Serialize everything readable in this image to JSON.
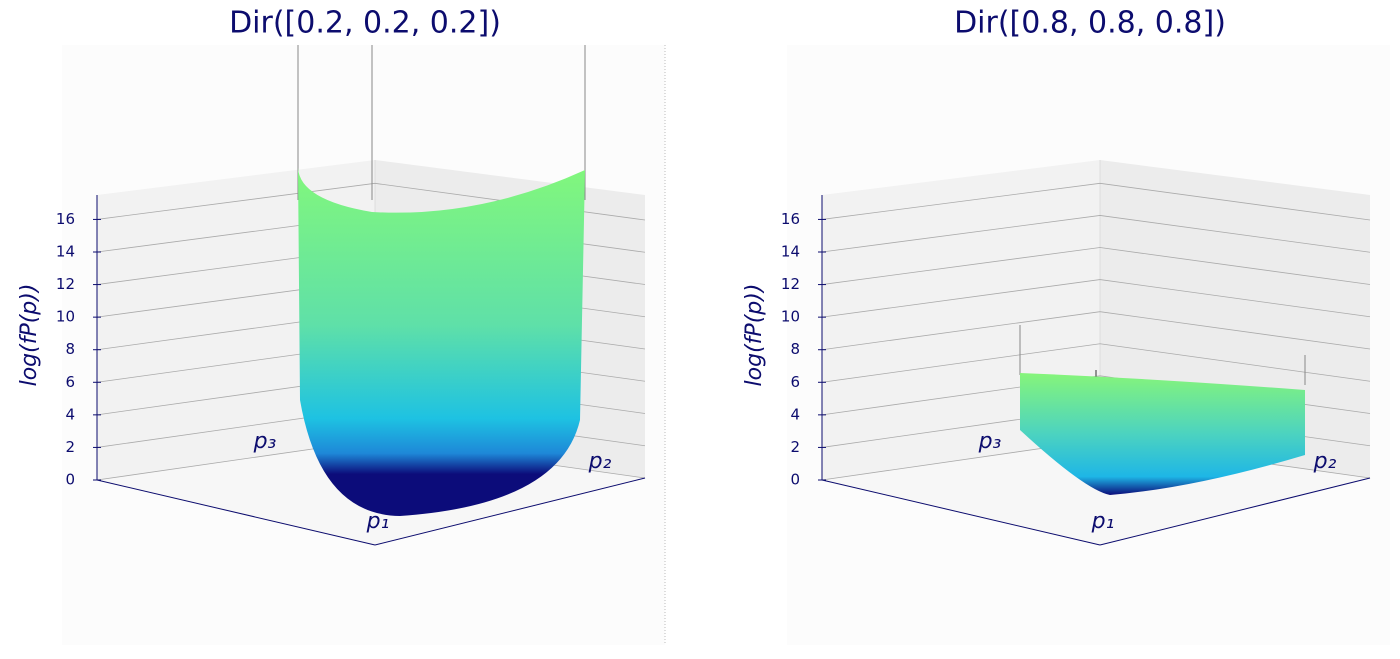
{
  "chart_data": [
    {
      "type": "surface3d",
      "title": "Dir([0.2, 0.2, 0.2])",
      "zlabel": "log(fP(p))",
      "xlabel": "p₁",
      "ylabel": "p₂",
      "wlabel": "p₃",
      "zlim": [
        0,
        17.5
      ],
      "zticks": [
        0,
        2,
        4,
        6,
        8,
        10,
        12,
        14,
        16
      ]
    },
    {
      "type": "surface3d",
      "title": "Dir([0.8, 0.8, 0.8])",
      "zlabel": "log(fP(p))",
      "xlabel": "p₁",
      "ylabel": "p₂",
      "wlabel": "p₃",
      "zlim": [
        0,
        17.5
      ],
      "zticks": [
        0,
        2,
        4,
        6,
        8,
        10,
        12,
        14,
        16
      ]
    }
  ]
}
